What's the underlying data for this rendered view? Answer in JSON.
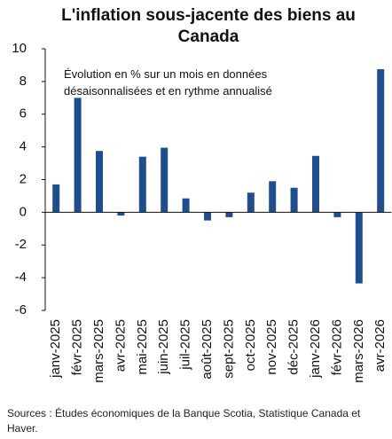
{
  "chart_data": {
    "type": "bar",
    "title": "L'inflation sous-jacente des biens au Canada",
    "subtitle": "Évolution en % sur un mois en données désaisonnalisées et en rythme annualisé",
    "source": "Sources : Études économiques de la Banque Scotia, Statistique Canada et Haver.",
    "categories": [
      "janv-2025",
      "févr-2025",
      "mars-2025",
      "avr-2025",
      "mai-2025",
      "juin-2025",
      "juil-2025",
      "août-2025",
      "sept-2025",
      "oct-2025",
      "nov-2025",
      "déc-2025",
      "janv-2026",
      "févr-2026",
      "mars-2026",
      "avr-2026"
    ],
    "values": [
      1.7,
      7.0,
      3.75,
      -0.2,
      3.4,
      3.95,
      0.85,
      -0.5,
      -0.3,
      1.2,
      1.9,
      1.5,
      3.45,
      -0.3,
      -4.35,
      8.75
    ],
    "color": "#1f4e8c",
    "ylim": [
      -6,
      10
    ],
    "yticks": [
      -6,
      -4,
      -2,
      0,
      2,
      4,
      6,
      8,
      10
    ],
    "grid": false
  }
}
